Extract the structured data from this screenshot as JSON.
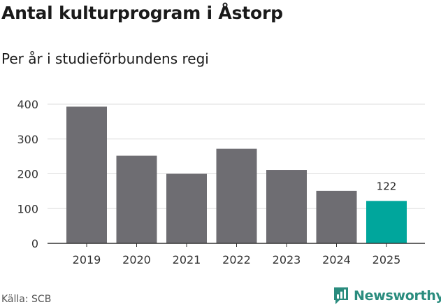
{
  "header": {
    "title": "Antal kulturprogram i Åstorp",
    "subtitle": "Per år i studieförbundens regi"
  },
  "footer": {
    "source": "Källa: SCB",
    "brand": "Newsworthy"
  },
  "colors": {
    "bar": "#6e6d72",
    "highlight": "#00a69c",
    "grid": "#dddddd",
    "axis": "#333333",
    "brand": "#2a8c7e"
  },
  "chart_data": {
    "type": "bar",
    "categories": [
      "2019",
      "2020",
      "2021",
      "2022",
      "2023",
      "2024",
      "2025"
    ],
    "values": [
      393,
      252,
      200,
      272,
      211,
      151,
      122
    ],
    "ylim": [
      0,
      400
    ],
    "yticks": [
      0,
      100,
      200,
      300,
      400
    ],
    "highlight_index": 6,
    "data_labels": [
      {
        "index": 6,
        "text": "122"
      }
    ],
    "grid": true,
    "xlabel": "",
    "ylabel": ""
  }
}
